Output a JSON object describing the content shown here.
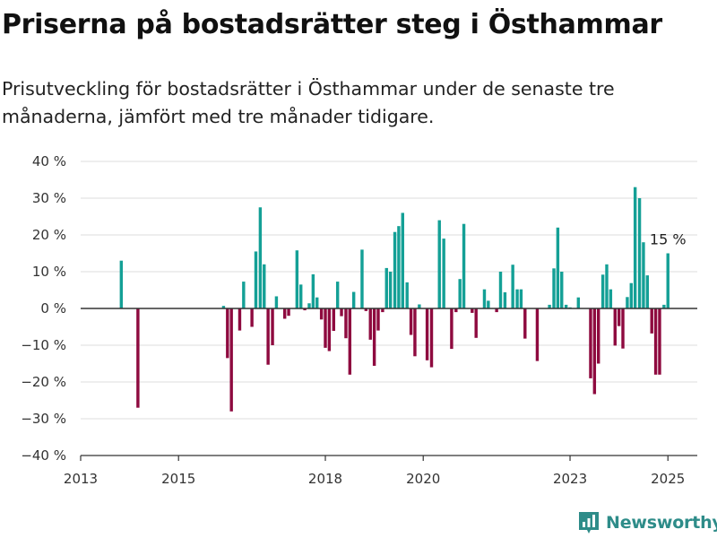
{
  "title": "Priserna på bostadsrätter steg i Östhammar",
  "subtitle": "Prisutveckling för bostadsrätter i Östhammar under de senaste tre månaderna, jämfört med tre månader tidigare.",
  "brand": "Newsworthy",
  "colors": {
    "positive": "#14a096",
    "negative": "#8e0a3f",
    "grid": "#dcdcdc",
    "axis": "#333333",
    "brand": "#2e8c89"
  },
  "chart_data": {
    "type": "bar",
    "title": "Priserna på bostadsrätter steg i Östhammar",
    "ylim": [
      -40,
      40
    ],
    "xlim": [
      2013.0,
      2025.6
    ],
    "y_ticks": [
      -40,
      -30,
      -20,
      -10,
      0,
      10,
      20,
      30,
      40
    ],
    "y_tick_labels": [
      "−40 %",
      "−30 %",
      "−20 %",
      "−10 %",
      "0 %",
      "10 %",
      "20 %",
      "30 %",
      "40 %"
    ],
    "x_ticks": [
      2013,
      2015,
      2018,
      2020,
      2023,
      2025
    ],
    "x_tick_labels": [
      "2013",
      "2015",
      "2018",
      "2020",
      "2023",
      "2025"
    ],
    "grid": true,
    "annotation": {
      "label": "15 %",
      "x": 2025.0,
      "y": 15
    },
    "bar_width_years": 0.0625,
    "x": [
      2013.83,
      2014.17,
      2015.92,
      2016.0,
      2016.08,
      2016.25,
      2016.33,
      2016.5,
      2016.58,
      2016.67,
      2016.75,
      2016.83,
      2016.92,
      2017.0,
      2017.17,
      2017.25,
      2017.42,
      2017.5,
      2017.58,
      2017.67,
      2017.75,
      2017.83,
      2017.92,
      2018.0,
      2018.08,
      2018.17,
      2018.25,
      2018.33,
      2018.42,
      2018.5,
      2018.58,
      2018.75,
      2018.83,
      2018.92,
      2019.0,
      2019.08,
      2019.17,
      2019.25,
      2019.33,
      2019.42,
      2019.5,
      2019.58,
      2019.67,
      2019.75,
      2019.83,
      2019.92,
      2020.08,
      2020.17,
      2020.33,
      2020.42,
      2020.58,
      2020.67,
      2020.75,
      2020.83,
      2021.0,
      2021.08,
      2021.25,
      2021.33,
      2021.5,
      2021.58,
      2021.67,
      2021.83,
      2021.92,
      2022.0,
      2022.08,
      2022.33,
      2022.58,
      2022.67,
      2022.75,
      2022.83,
      2022.92,
      2023.0,
      2023.17,
      2023.42,
      2023.5,
      2023.58,
      2023.67,
      2023.75,
      2023.83,
      2023.92,
      2024.0,
      2024.08,
      2024.17,
      2024.25,
      2024.33,
      2024.42,
      2024.5,
      2024.58,
      2024.67,
      2024.75,
      2024.83,
      2024.92,
      2025.0
    ],
    "values": [
      13,
      -27,
      0.7,
      -13.5,
      -28,
      -6,
      7.3,
      -5,
      15.5,
      27.5,
      12,
      -15.3,
      -10,
      3.3,
      -2.8,
      -2,
      15.8,
      6.5,
      -0.5,
      1.4,
      9.3,
      3,
      -3,
      -10.7,
      -11.6,
      -6.1,
      7.3,
      -2.1,
      -8.1,
      -18,
      4.5,
      16,
      -0.7,
      -8.5,
      -15.6,
      -6,
      -1,
      11,
      10,
      20.8,
      22.4,
      26,
      7.1,
      -7.2,
      -13,
      1.1,
      -14.1,
      -16,
      24,
      19,
      -11,
      -1,
      8,
      23,
      -1.2,
      -8,
      5.2,
      2.1,
      -1,
      10,
      4.4,
      11.9,
      5.2,
      5.2,
      -8.2,
      -14.3,
      1,
      10.9,
      22,
      10,
      1,
      0.3,
      3,
      -19,
      -23.3,
      -15,
      9.2,
      12,
      5.2,
      -10.1,
      -4.8,
      -10.9,
      3.1,
      6.9,
      33,
      30,
      18,
      9,
      -6.8,
      -18,
      -18,
      1,
      15
    ]
  }
}
